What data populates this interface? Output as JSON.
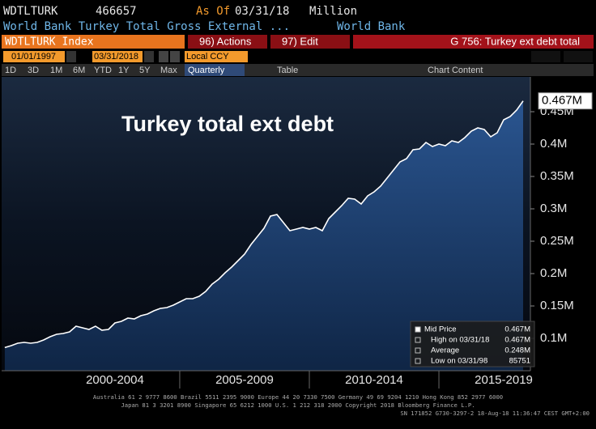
{
  "header": {
    "ticker": "WDTLTURK",
    "value": 466657,
    "as_of_label": "As Of",
    "as_of": "03/31/18",
    "units": "Million",
    "description": "World Bank Turkey Total Gross External ...",
    "source": "World Bank"
  },
  "toolbar": {
    "security": "WDTLTURK Index",
    "actions": "96) Actions",
    "edit": "97) Edit",
    "graph": "G 756: Turkey ext debt total",
    "start_date": "01/01/1997",
    "end_date": "03/31/2018",
    "currency": "Local CCY",
    "periods": [
      "1D",
      "3D",
      "1M",
      "6M",
      "YTD",
      "1Y",
      "5Y",
      "Max"
    ],
    "frequency": "Quarterly",
    "table": "Table",
    "chart_content": "Chart Content"
  },
  "chart_data": {
    "type": "area",
    "title": "Turkey total ext debt",
    "color": "#ffffff",
    "fill": "#1d4478",
    "grid": false,
    "x": [
      1998.25,
      1998.5,
      1998.75,
      1999,
      1999.25,
      1999.5,
      1999.75,
      2000,
      2000.25,
      2000.5,
      2000.75,
      2001,
      2001.25,
      2001.5,
      2001.75,
      2002,
      2002.25,
      2002.5,
      2002.75,
      2003,
      2003.25,
      2003.5,
      2003.75,
      2004,
      2004.25,
      2004.5,
      2004.75,
      2005,
      2005.25,
      2005.5,
      2005.75,
      2006,
      2006.25,
      2006.5,
      2006.75,
      2007,
      2007.25,
      2007.5,
      2007.75,
      2008,
      2008.25,
      2008.5,
      2008.75,
      2009,
      2009.25,
      2009.5,
      2009.75,
      2010,
      2010.25,
      2010.5,
      2010.75,
      2011,
      2011.25,
      2011.5,
      2011.75,
      2012,
      2012.25,
      2012.5,
      2012.75,
      2013,
      2013.25,
      2013.5,
      2013.75,
      2014,
      2014.25,
      2014.5,
      2014.75,
      2015,
      2015.25,
      2015.5,
      2015.75,
      2016,
      2016.25,
      2016.5,
      2016.75,
      2017,
      2017.25,
      2017.5,
      2017.75,
      2018,
      2018.25
    ],
    "values": [
      85751,
      88750,
      92500,
      93750,
      92500,
      93750,
      97500,
      102500,
      106250,
      107500,
      110000,
      118750,
      116250,
      113750,
      118750,
      112500,
      113750,
      123750,
      126250,
      131250,
      130000,
      135000,
      137500,
      142500,
      146250,
      147500,
      151250,
      156250,
      161250,
      161250,
      165000,
      172500,
      183750,
      191250,
      201250,
      210000,
      220000,
      230000,
      245000,
      257500,
      270000,
      288750,
      291250,
      278750,
      266250,
      268750,
      271250,
      268750,
      271250,
      266250,
      285000,
      295000,
      305000,
      316250,
      315000,
      307500,
      320000,
      326250,
      335000,
      347500,
      360000,
      372500,
      377500,
      391250,
      392500,
      402500,
      396250,
      400000,
      397500,
      405000,
      402500,
      410000,
      420000,
      425000,
      422500,
      411250,
      417500,
      437500,
      442500,
      452500,
      466657
    ],
    "xlim": [
      1998.19,
      2018.53
    ],
    "xticks": [
      {
        "value": 2002.5,
        "label": "2000-2004"
      },
      {
        "value": 2007.5,
        "label": "2005-2009"
      },
      {
        "value": 2012.5,
        "label": "2010-2014"
      },
      {
        "value": 2017.5,
        "label": "2015-2019"
      }
    ],
    "ylim": [
      50000,
      503750
    ],
    "yticks": [
      {
        "value": 100000,
        "label": "0.1M"
      },
      {
        "value": 150000,
        "label": "0.15M"
      },
      {
        "value": 200000,
        "label": "0.2M"
      },
      {
        "value": 250000,
        "label": "0.25M"
      },
      {
        "value": 300000,
        "label": "0.3M"
      },
      {
        "value": 350000,
        "label": "0.35M"
      },
      {
        "value": 400000,
        "label": "0.4M"
      },
      {
        "value": 450000,
        "label": "0.45M"
      }
    ],
    "last_label": {
      "value": 466657,
      "label": "0.467M"
    },
    "stats": [
      {
        "name": "Mid Price",
        "value": 466657,
        "label": "0.467M"
      },
      {
        "name": "High on 03/31/18",
        "value": 466657,
        "label": "0.467M"
      },
      {
        "name": "Average",
        "value": 248000,
        "label": "0.248M"
      },
      {
        "name": "Low on 03/31/98",
        "value": 85751
      }
    ]
  },
  "footer": [
    "Australia 61 2 9777 8600 Brazil 5511 2395 9000 Europe 44 20 7330 7500 Germany 49 69 9204 1210 Hong Kong 852 2977 6000",
    "Japan 81 3 3201 8900       Singapore 65 6212 1000        U.S. 1 212 318 2000        Copyright 2018 Bloomberg Finance L.P.",
    "SN 171852 G730-3297-2 18-Aug-18 11:36:47 CEST GMT+2:00"
  ]
}
